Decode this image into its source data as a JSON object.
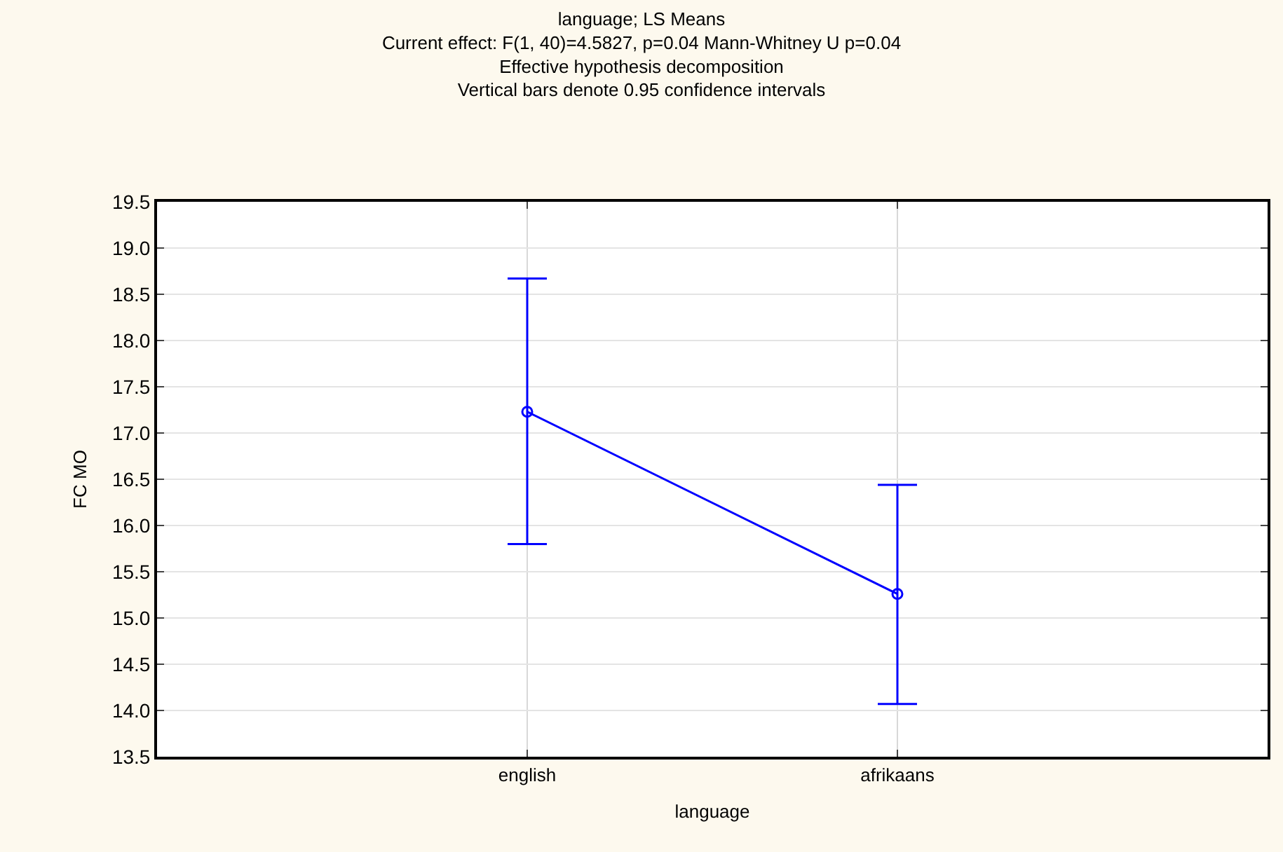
{
  "chart_data": {
    "type": "line",
    "title": "language; LS Means",
    "subtitle": "Current effect: F(1, 40)=4.5827, p=0.04 Mann-Whitney U p=0.04\nEffective hypothesis decomposition\nVertical bars denote 0.95 confidence intervals",
    "xlabel": "language",
    "ylabel": "FC MO",
    "categories": [
      "english",
      "afrikaans"
    ],
    "series": [
      {
        "color": "#0000ff",
        "values": [
          17.23,
          15.26
        ],
        "errors": [
          [
            15.8,
            18.67
          ],
          [
            14.07,
            16.44
          ]
        ]
      }
    ],
    "ylim": [
      13.5,
      19.5
    ],
    "yticks": [
      {
        "value": 13.5,
        "label": "13.5"
      },
      {
        "value": 14,
        "label": "14.0"
      },
      {
        "value": 14.5,
        "label": "14.5"
      },
      {
        "value": 15,
        "label": "15.0"
      },
      {
        "value": 15.5,
        "label": "15.5"
      },
      {
        "value": 16,
        "label": "16.0"
      },
      {
        "value": 16.5,
        "label": "16.5"
      },
      {
        "value": 17,
        "label": "17.0"
      },
      {
        "value": 17.5,
        "label": "17.5"
      },
      {
        "value": 18,
        "label": "18.0"
      },
      {
        "value": 18.5,
        "label": "18.5"
      },
      {
        "value": 19,
        "label": "19.0"
      },
      {
        "value": 19.5,
        "label": "19.5"
      }
    ],
    "grid": true,
    "marker": "circle",
    "line_style": "solid"
  }
}
